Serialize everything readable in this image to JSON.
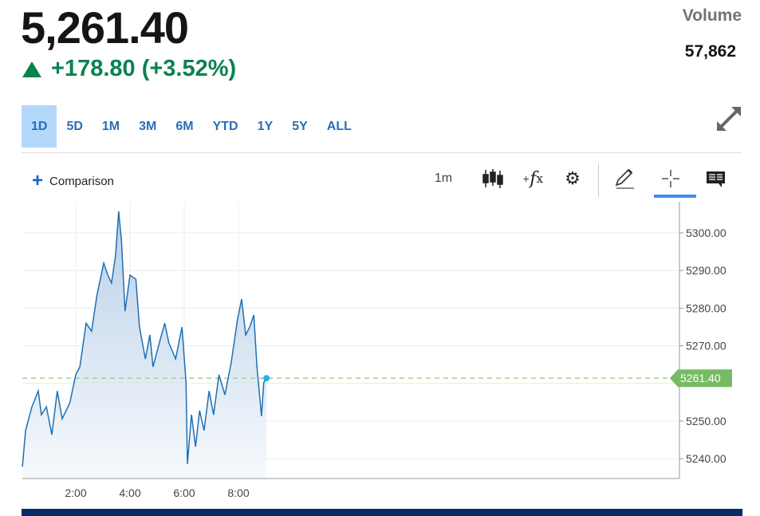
{
  "quote": {
    "price": "5,261.40",
    "change": "+178.80 (+3.52%)",
    "direction": "up",
    "volume_label": "Volume",
    "volume": "57,862"
  },
  "ranges": [
    "1D",
    "5D",
    "1M",
    "3M",
    "6M",
    "YTD",
    "1Y",
    "5Y",
    "ALL"
  ],
  "active_range": "1D",
  "toolbar": {
    "comparison": "Comparison",
    "interval": "1m",
    "icons": [
      "candlestick-icon",
      "indicator-fx-icon",
      "gear-icon",
      "pencil-icon",
      "crosshair-icon",
      "comment-icon",
      "expand-icon"
    ],
    "active_tool": "crosshair-icon"
  },
  "colors": {
    "line": "#1f6fb5",
    "up": "#0a8250",
    "last_price_tag": "#76bb63",
    "accent": "#3b8ff0",
    "nav": "#0b2a66"
  },
  "chart_data": {
    "type": "area",
    "x_ticks": [
      "2:00",
      "4:00",
      "6:00",
      "8:00"
    ],
    "y_ticks": [
      "5240.00",
      "5250.00",
      "5270.00",
      "5280.00",
      "5290.00",
      "5300.00"
    ],
    "ylim": [
      5236,
      5313
    ],
    "xlim": [
      "0:00",
      "24:00"
    ],
    "grid": true,
    "last_price": 5261.4,
    "last_price_label": "5261.40",
    "points": [
      [
        "0:02",
        5237.9
      ],
      [
        "0:09",
        5247.5
      ],
      [
        "0:23",
        5253.8
      ],
      [
        "0:37",
        5258
      ],
      [
        "0:44",
        5251.7
      ],
      [
        "0:55",
        5253.8
      ],
      [
        "1:07",
        5246.4
      ],
      [
        "1:19",
        5258
      ],
      [
        "1:30",
        5250.6
      ],
      [
        "1:47",
        5254.9
      ],
      [
        "2:00",
        5262.3
      ],
      [
        "2:09",
        5264.4
      ],
      [
        "2:23",
        5276
      ],
      [
        "2:35",
        5273.9
      ],
      [
        "2:47",
        5283.5
      ],
      [
        "3:02",
        5292
      ],
      [
        "3:11",
        5288.8
      ],
      [
        "3:19",
        5286.7
      ],
      [
        "3:28",
        5294
      ],
      [
        "3:35",
        5305.7
      ],
      [
        "3:41",
        5298.3
      ],
      [
        "3:49",
        5279.2
      ],
      [
        "4:00",
        5288.8
      ],
      [
        "4:13",
        5287.7
      ],
      [
        "4:21",
        5275
      ],
      [
        "4:34",
        5266.5
      ],
      [
        "4:44",
        5272.9
      ],
      [
        "4:51",
        5264.4
      ],
      [
        "5:05",
        5270.8
      ],
      [
        "5:17",
        5276
      ],
      [
        "5:26",
        5270.8
      ],
      [
        "5:41",
        5266.5
      ],
      [
        "5:55",
        5275
      ],
      [
        "6:04",
        5260.2
      ],
      [
        "6:07",
        5238.6
      ],
      [
        "6:16",
        5251.7
      ],
      [
        "6:25",
        5243.2
      ],
      [
        "6:34",
        5252.8
      ],
      [
        "6:44",
        5247.5
      ],
      [
        "6:55",
        5258
      ],
      [
        "7:05",
        5251.7
      ],
      [
        "7:17",
        5262.3
      ],
      [
        "7:30",
        5257
      ],
      [
        "7:44",
        5265.5
      ],
      [
        "7:58",
        5277.1
      ],
      [
        "8:07",
        5282.4
      ],
      [
        "8:16",
        5272.9
      ],
      [
        "8:25",
        5275
      ],
      [
        "8:34",
        5278.2
      ],
      [
        "8:41",
        5264.4
      ],
      [
        "8:51",
        5251.3
      ],
      [
        "8:56",
        5260.2
      ],
      [
        "9:02",
        5261.4
      ]
    ]
  }
}
